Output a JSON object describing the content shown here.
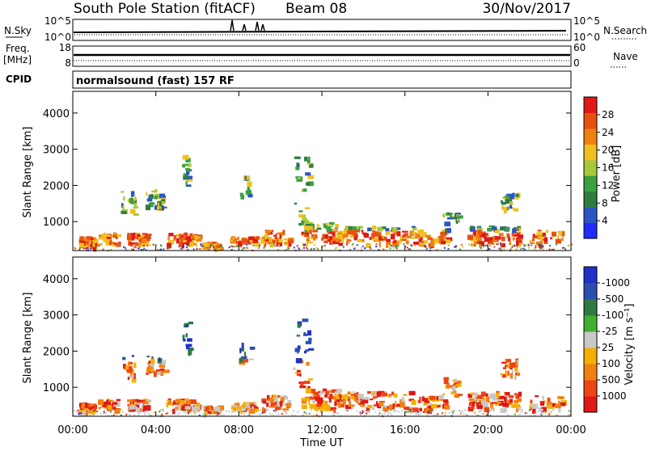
{
  "header": {
    "station": "South Pole Station (fitACF)",
    "beam": "Beam 08",
    "date": "30/Nov/2017",
    "program": "normalsound (fast) 157 RF"
  },
  "side_labels": {
    "nsky": "N.Sky",
    "nsearch": "N.Search",
    "freq": "Freq.",
    "mhz": "[MHz]",
    "nave": "Nave",
    "cpid": "CPID"
  },
  "top_panels": {
    "noise_ticks_left": [
      "10^5",
      "10^0"
    ],
    "noise_ticks_right": [
      "10^5",
      "10^0"
    ],
    "freq_ticks_left": [
      "18",
      "8"
    ],
    "nave_ticks_right": [
      "60",
      "0"
    ]
  },
  "colors": {
    "power": [
      "#1f2bff",
      "#2c55c4",
      "#2f7d3e",
      "#3aa040",
      "#a8c83c",
      "#f0c020",
      "#f08010",
      "#e85010",
      "#e01818"
    ],
    "velocity": [
      "#e01818",
      "#ee4414",
      "#f2800e",
      "#f4b000",
      "#c8c8c8",
      "#40b030",
      "#2e7a42",
      "#2a4fb0",
      "#2030c8"
    ]
  },
  "chart_data": [
    {
      "type": "heatmap",
      "name": "power",
      "ylabel": "Slant Range [km]",
      "xlabel": "",
      "xticks": [
        "00:00",
        "04:00",
        "08:00",
        "12:00",
        "16:00",
        "20:00",
        "00:00"
      ],
      "yticks": [
        "1000",
        "2000",
        "3000",
        "4000"
      ],
      "ylim": [
        200,
        4600
      ],
      "xlim_hours": [
        0,
        24
      ],
      "colorbar_label": "Power [dB]",
      "colorbar_ticks": [
        "4",
        "8",
        "12",
        "16",
        "20",
        "24",
        "28"
      ],
      "colorbar_range": [
        0,
        30
      ]
    },
    {
      "type": "heatmap",
      "name": "velocity",
      "ylabel": "Slant Range [km]",
      "xlabel": "Time UT",
      "xticks": [
        "00:00",
        "04:00",
        "08:00",
        "12:00",
        "16:00",
        "20:00",
        "00:00"
      ],
      "yticks": [
        "1000",
        "2000",
        "3000",
        "4000"
      ],
      "ylim": [
        200,
        4600
      ],
      "xlim_hours": [
        0,
        24
      ],
      "colorbar_label": "Velocity [m s⁻¹]",
      "colorbar_ticks": [
        "1000",
        "500",
        "100",
        "25",
        "-25",
        "-100",
        "-500",
        "-1000"
      ]
    }
  ]
}
